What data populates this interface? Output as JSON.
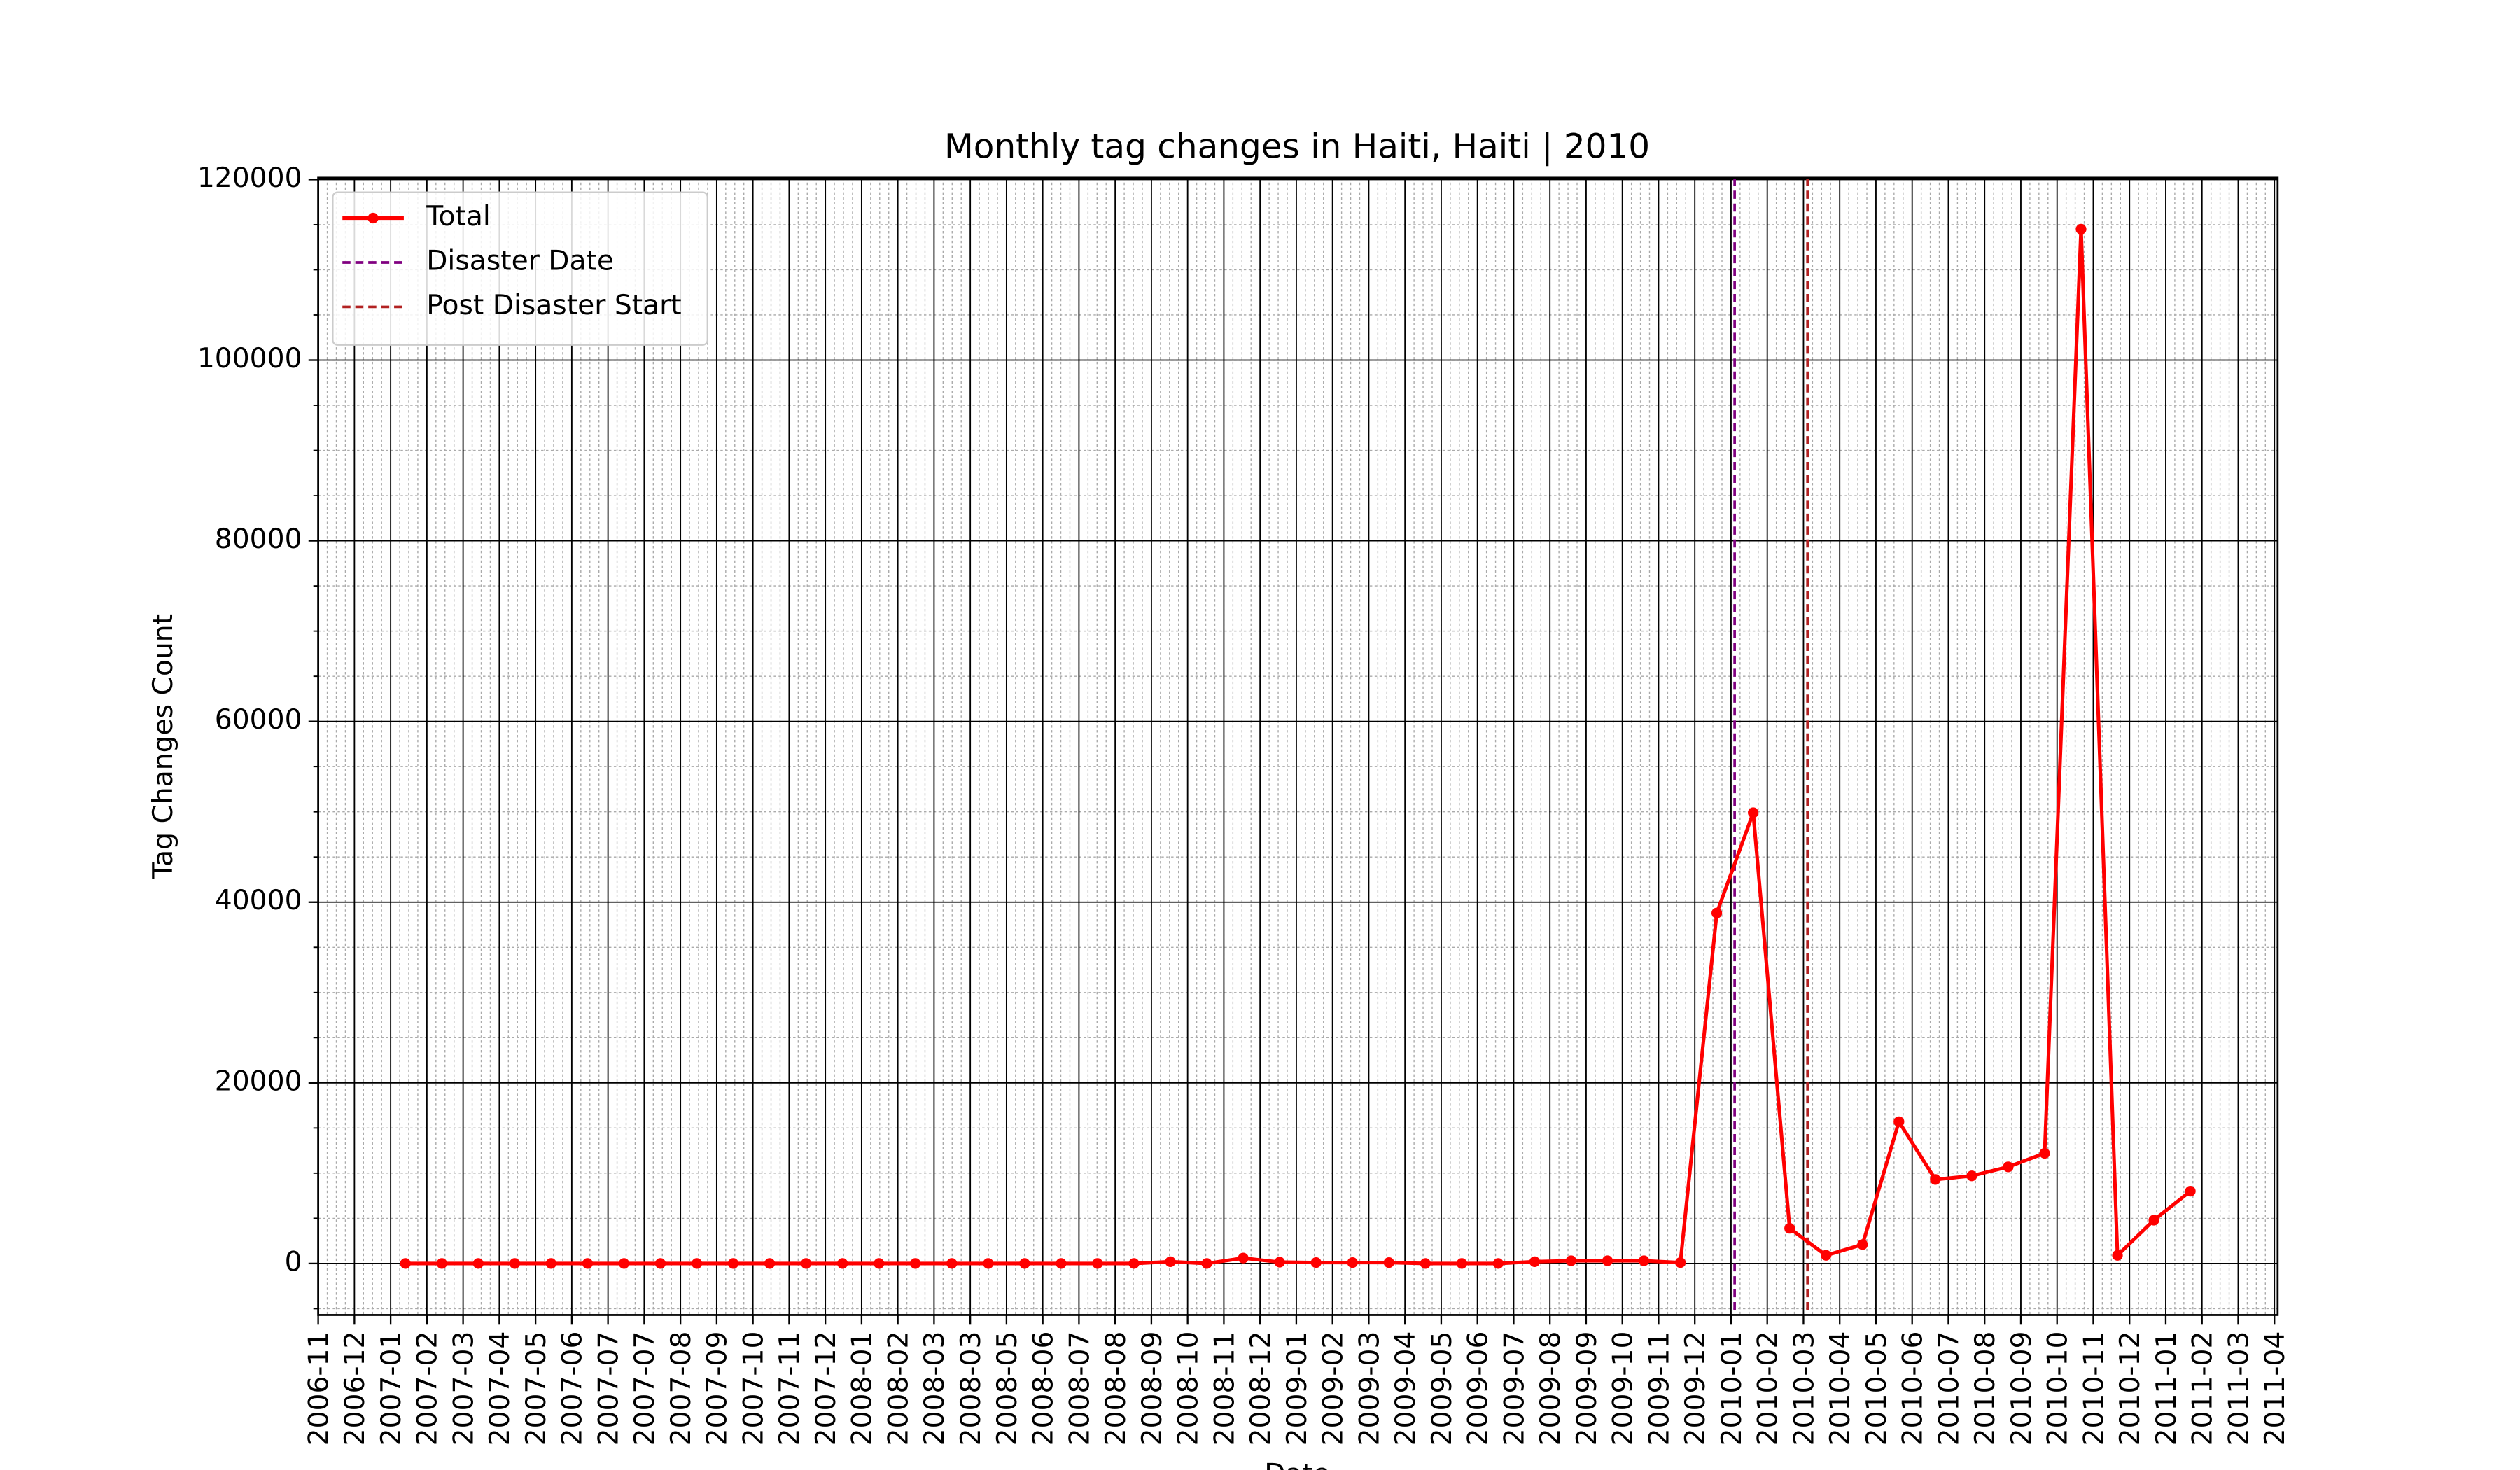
{
  "chart_data": {
    "type": "line",
    "title": "Monthly tag changes in Haiti, Haiti | 2010",
    "x_label": "Date",
    "y_label": "Tag Changes Count",
    "x": [
      "2007-01",
      "2007-02",
      "2007-03",
      "2007-04",
      "2007-05",
      "2007-06",
      "2007-07",
      "2007-08",
      "2007-09",
      "2007-10",
      "2007-11",
      "2007-12",
      "2008-01",
      "2008-02",
      "2008-03",
      "2008-04",
      "2008-05",
      "2008-06",
      "2008-07",
      "2008-08",
      "2008-09",
      "2008-10",
      "2008-11",
      "2008-12",
      "2009-01",
      "2009-02",
      "2009-03",
      "2009-04",
      "2009-05",
      "2009-06",
      "2009-07",
      "2009-08",
      "2009-09",
      "2009-10",
      "2009-11",
      "2009-12",
      "2010-01",
      "2010-02",
      "2010-03",
      "2010-04",
      "2010-05",
      "2010-06",
      "2010-07",
      "2010-08",
      "2010-09",
      "2010-10",
      "2010-11",
      "2010-12",
      "2011-01",
      "2011-02"
    ],
    "series": [
      {
        "name": "Total",
        "color": "#ff0000",
        "values": [
          0,
          0,
          0,
          0,
          0,
          0,
          0,
          0,
          0,
          0,
          0,
          0,
          0,
          0,
          0,
          0,
          0,
          0,
          0,
          0,
          0,
          200,
          0,
          600,
          150,
          100,
          100,
          100,
          0,
          0,
          0,
          200,
          300,
          300,
          300,
          100,
          38800,
          49900,
          3900,
          900,
          2100,
          15700,
          9300,
          9700,
          10700,
          12200,
          114500,
          900,
          4800,
          8000
        ]
      }
    ],
    "vlines": [
      {
        "name": "Disaster Date",
        "color": "#800080",
        "x": "2010-01"
      },
      {
        "name": "Post Disaster Start",
        "color": "#b22222",
        "x": "2010-03"
      }
    ],
    "ylim": [
      -5700,
      120200
    ],
    "yticks": [
      0,
      20000,
      40000,
      60000,
      80000,
      100000,
      120000
    ],
    "xticks": [
      "2006-11",
      "2006-12",
      "2007-01",
      "2007-02",
      "2007-03",
      "2007-04",
      "2007-05",
      "2007-06",
      "2007-07",
      "2007-07",
      "2007-08",
      "2007-09",
      "2007-10",
      "2007-11",
      "2007-12",
      "2008-01",
      "2008-02",
      "2008-03",
      "2008-03",
      "2008-05",
      "2008-06",
      "2008-07",
      "2008-08",
      "2008-09",
      "2008-10",
      "2008-11",
      "2008-12",
      "2009-01",
      "2009-02",
      "2009-03",
      "2009-04",
      "2009-05",
      "2009-06",
      "2009-07",
      "2009-08",
      "2009-09",
      "2009-10",
      "2009-11",
      "2009-12",
      "2010-01",
      "2010-02",
      "2010-03",
      "2010-04",
      "2010-05",
      "2010-06",
      "2010-07",
      "2010-08",
      "2010-09",
      "2010-10",
      "2010-11",
      "2010-12",
      "2011-01",
      "2011-02",
      "2011-03",
      "2011-04"
    ],
    "grid": true,
    "legend": "upper left"
  }
}
